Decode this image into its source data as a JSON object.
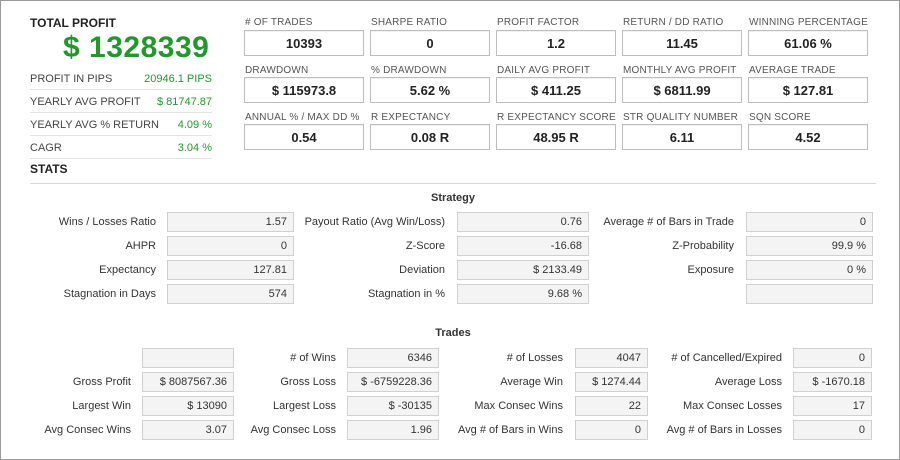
{
  "summary": {
    "total_profit_label": "TOTAL PROFIT",
    "total_profit_value": "$ 1328339",
    "rows": [
      {
        "label": "PROFIT IN PIPS",
        "value": "20946.1 PIPS"
      },
      {
        "label": "YEARLY AVG PROFIT",
        "value": "$ 81747.87"
      },
      {
        "label": "YEARLY AVG % RETURN",
        "value": "4.09 %"
      },
      {
        "label": "CAGR",
        "value": "3.04 %"
      }
    ]
  },
  "metrics": [
    [
      {
        "label": "# OF TRADES",
        "value": "10393"
      },
      {
        "label": "SHARPE RATIO",
        "value": "0"
      },
      {
        "label": "PROFIT FACTOR",
        "value": "1.2"
      },
      {
        "label": "RETURN / DD RATIO",
        "value": "11.45"
      },
      {
        "label": "WINNING PERCENTAGE",
        "value": "61.06 %"
      }
    ],
    [
      {
        "label": "DRAWDOWN",
        "value": "$ 115973.8"
      },
      {
        "label": "% DRAWDOWN",
        "value": "5.62 %"
      },
      {
        "label": "DAILY AVG PROFIT",
        "value": "$ 411.25"
      },
      {
        "label": "MONTHLY AVG PROFIT",
        "value": "$ 6811.99"
      },
      {
        "label": "AVERAGE TRADE",
        "value": "$ 127.81"
      }
    ],
    [
      {
        "label": "ANNUAL % / MAX DD %",
        "value": "0.54"
      },
      {
        "label": "R EXPECTANCY",
        "value": "0.08 R"
      },
      {
        "label": "R EXPECTANCY SCORE",
        "value": "48.95 R"
      },
      {
        "label": "STR QUALITY NUMBER",
        "value": "6.11"
      },
      {
        "label": "SQN SCORE",
        "value": "4.52"
      }
    ]
  ],
  "stats": {
    "title": "STATS",
    "strategy": {
      "title": "Strategy",
      "rows": [
        [
          {
            "label": "Wins / Losses Ratio",
            "value": "1.57"
          },
          {
            "label": "Payout Ratio (Avg Win/Loss)",
            "value": "0.76"
          },
          {
            "label": "Average # of Bars in Trade",
            "value": "0"
          }
        ],
        [
          {
            "label": "AHPR",
            "value": "0"
          },
          {
            "label": "Z-Score",
            "value": "-16.68"
          },
          {
            "label": "Z-Probability",
            "value": "99.9 %"
          }
        ],
        [
          {
            "label": "Expectancy",
            "value": "127.81"
          },
          {
            "label": "Deviation",
            "value": "$ 2133.49"
          },
          {
            "label": "Exposure",
            "value": "0 %"
          }
        ],
        [
          {
            "label": "Stagnation in Days",
            "value": "574"
          },
          {
            "label": "Stagnation in %",
            "value": "9.68 %"
          },
          {
            "label": "",
            "value": ""
          }
        ]
      ]
    },
    "trades": {
      "title": "Trades",
      "rows": [
        [
          {
            "label": "",
            "value": ""
          },
          {
            "label": "# of Wins",
            "value": "6346"
          },
          {
            "label": "# of Losses",
            "value": "4047"
          },
          {
            "label": "# of Cancelled/Expired",
            "value": "0"
          }
        ],
        [
          {
            "label": "Gross Profit",
            "value": "$ 8087567.36"
          },
          {
            "label": "Gross Loss",
            "value": "$ -6759228.36"
          },
          {
            "label": "Average Win",
            "value": "$ 1274.44"
          },
          {
            "label": "Average Loss",
            "value": "$ -1670.18"
          }
        ],
        [
          {
            "label": "Largest Win",
            "value": "$ 13090"
          },
          {
            "label": "Largest Loss",
            "value": "$ -30135"
          },
          {
            "label": "Max Consec Wins",
            "value": "22"
          },
          {
            "label": "Max Consec Losses",
            "value": "17"
          }
        ],
        [
          {
            "label": "Avg Consec Wins",
            "value": "3.07"
          },
          {
            "label": "Avg Consec Loss",
            "value": "1.96"
          },
          {
            "label": "Avg # of Bars in Wins",
            "value": "0"
          },
          {
            "label": "Avg # of Bars in Losses",
            "value": "0"
          }
        ]
      ]
    }
  }
}
